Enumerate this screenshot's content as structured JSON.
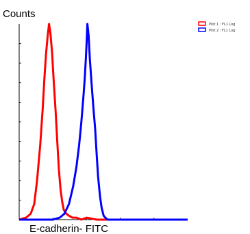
{
  "chart_data": {
    "type": "line",
    "title": "",
    "ylabel": "Counts",
    "xlabel": "E-cadherin- FITC",
    "xscale": "log",
    "xlim": [
      1,
      100000
    ],
    "ylim": [
      0,
      100
    ],
    "grid": false,
    "legend_position": "top-right",
    "series": [
      {
        "name": "Plot 1 : FL1 Log",
        "color": "#ff0000",
        "x": [
          1,
          1.6,
          2.2,
          2.8,
          3.4,
          4.2,
          5,
          5.6,
          6.3,
          7,
          7.7,
          8.5,
          9.5,
          10.5,
          12,
          13.5,
          15,
          17,
          19,
          21,
          25,
          30,
          38,
          50,
          70,
          100,
          200,
          500,
          1000,
          5000,
          100000
        ],
        "y": [
          0,
          1,
          3,
          8,
          20,
          38,
          57,
          72,
          85,
          94,
          100,
          95,
          85,
          72,
          56,
          40,
          26,
          15,
          9,
          5,
          3,
          2,
          1,
          1,
          0,
          1,
          0,
          0,
          0,
          0,
          0
        ]
      },
      {
        "name": "Plot 2 : FL1 Log",
        "color": "#0000ff",
        "x": [
          1,
          5,
          10,
          16,
          22,
          30,
          40,
          50,
          60,
          70,
          80,
          88,
          95,
          100,
          106,
          115,
          125,
          140,
          160,
          180,
          200,
          220,
          250,
          280,
          320,
          360,
          420,
          500,
          650,
          1000,
          100000
        ],
        "y": [
          0,
          0,
          0,
          1,
          3,
          8,
          17,
          27,
          38,
          50,
          62,
          72,
          82,
          90,
          100,
          94,
          82,
          70,
          57,
          46,
          33,
          22,
          12,
          6,
          2,
          1,
          0,
          0,
          0,
          0,
          0
        ]
      }
    ]
  }
}
